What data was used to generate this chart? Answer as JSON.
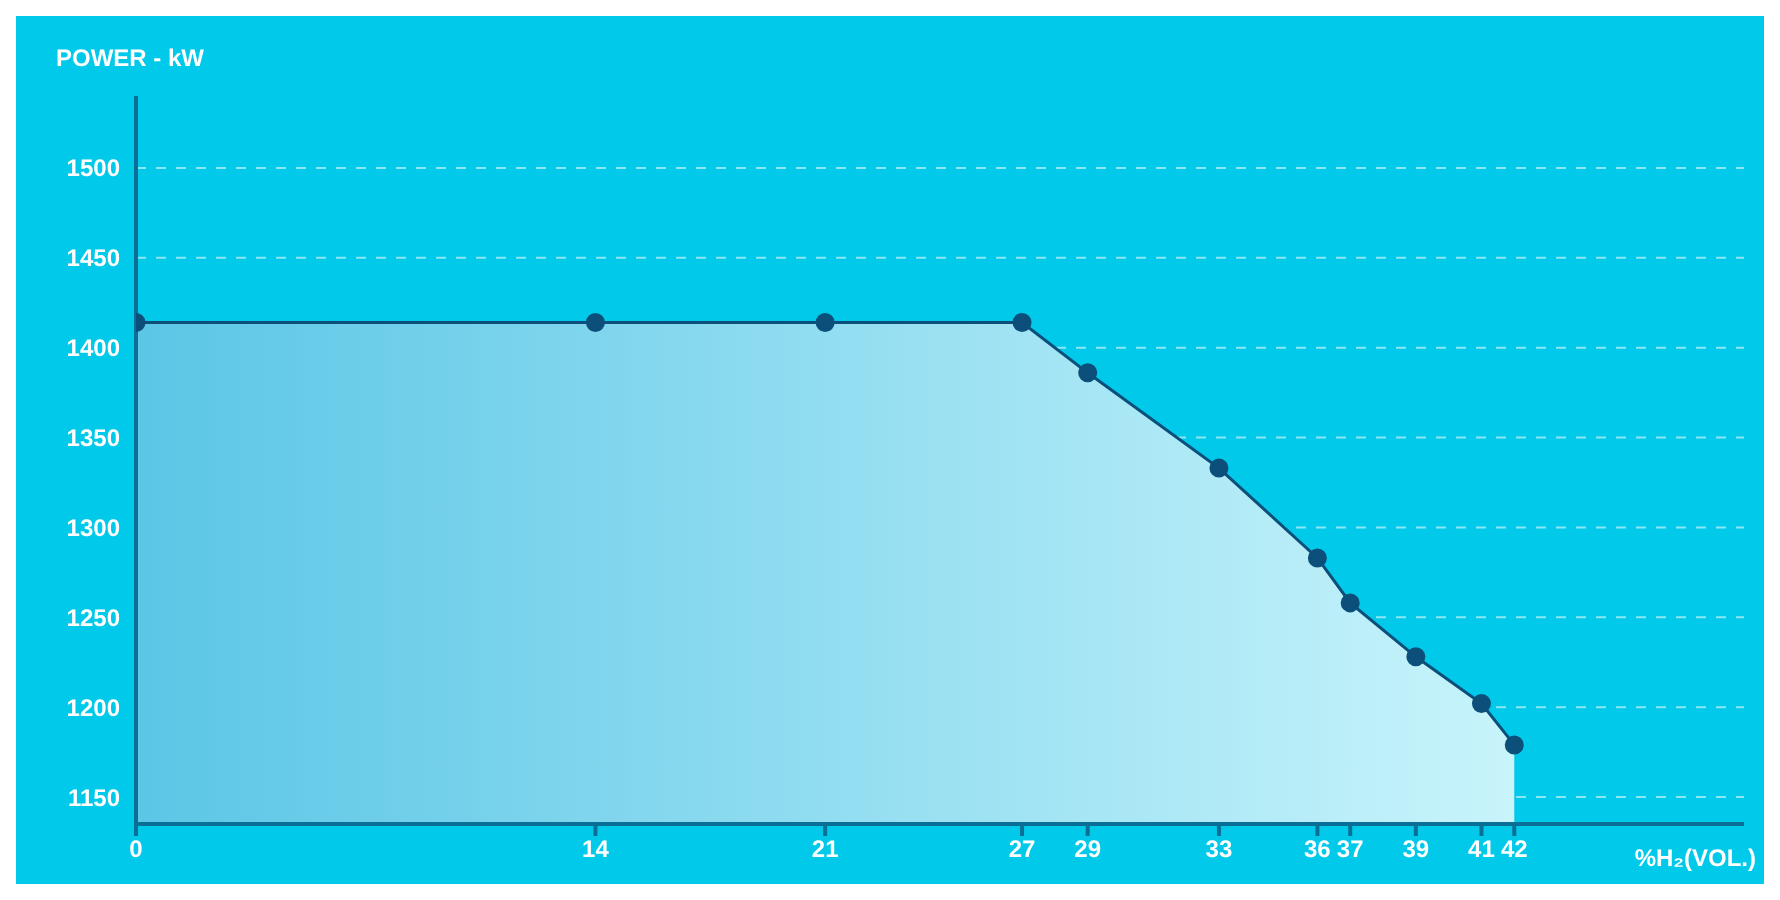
{
  "chart_data": {
    "type": "area",
    "ylabel": "POWER - kW",
    "xlabel": "%H₂(VOL.)",
    "x": [
      0,
      14,
      21,
      27,
      29,
      33,
      36,
      37,
      39,
      41,
      42
    ],
    "series": [
      {
        "color": "#0b4f7a",
        "values": [
          1414,
          1414,
          1414,
          1414,
          1386,
          1333,
          1283,
          1258,
          1228,
          1202,
          1179
        ]
      }
    ],
    "xlim": [
      0,
      49
    ],
    "xticks": [
      0,
      14,
      21,
      27,
      29,
      33,
      36,
      37,
      39,
      41,
      42
    ],
    "ylim": [
      1135,
      1540
    ],
    "yticks": [
      1150,
      1200,
      1250,
      1300,
      1350,
      1400,
      1450,
      1500
    ],
    "grid": "y",
    "marker": "circle"
  }
}
